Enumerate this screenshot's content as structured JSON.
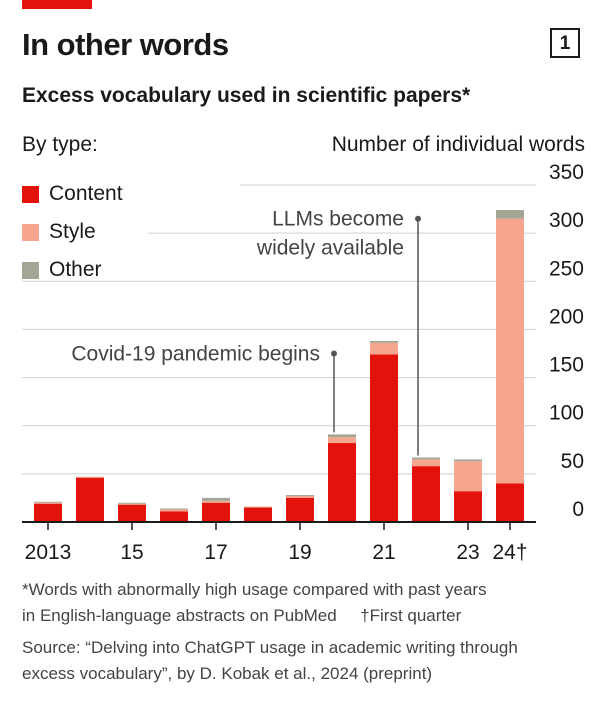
{
  "title": "In other words",
  "badge": "1",
  "subtitle": "Excess vocabulary used in scientific papers*",
  "legend_title": "By type:",
  "footnotes": {
    "line1": "*Words with abnormally high usage compared with past years",
    "line2a": "in English-language abstracts on PubMed",
    "line2b": "†First quarter",
    "line3": "Source: “Delving into ChatGPT usage in academic writing through",
    "line4": "excess vocabulary”, by D. Kobak et al., 2024 (preprint)"
  },
  "colors": {
    "content": "#e3120b",
    "style": "#f6a58e",
    "other": "#a5a595",
    "accent": "#e3120b"
  },
  "chart_data": {
    "type": "bar",
    "stacked": true,
    "ylabel": "Number of individual words",
    "ylim": [
      0,
      350
    ],
    "yticks": [
      0,
      50,
      100,
      150,
      200,
      250,
      300,
      350
    ],
    "axis_side": "right",
    "legend_position": "top-left",
    "categories": [
      "2013",
      "2014",
      "2015",
      "2016",
      "2017",
      "2018",
      "2019",
      "2020",
      "2021",
      "2022",
      "2023",
      "2024"
    ],
    "xtick_labels": [
      {
        "category": "2013",
        "label": "2013"
      },
      {
        "category": "2015",
        "label": "15"
      },
      {
        "category": "2017",
        "label": "17"
      },
      {
        "category": "2019",
        "label": "19"
      },
      {
        "category": "2021",
        "label": "21"
      },
      {
        "category": "2023",
        "label": "23"
      },
      {
        "category": "2024",
        "label": "24†"
      }
    ],
    "series": [
      {
        "name": "Content",
        "color": "#e3120b",
        "values": [
          19,
          46,
          18,
          11,
          20,
          15,
          25,
          82,
          174,
          58,
          32,
          40
        ]
      },
      {
        "name": "Style",
        "color": "#f6a58e",
        "values": [
          1,
          1,
          1,
          2,
          2,
          1,
          2,
          6,
          12,
          7,
          31,
          275
        ]
      },
      {
        "name": "Other",
        "color": "#a5a595",
        "values": [
          1,
          0,
          1,
          1,
          3,
          0,
          1,
          3,
          2,
          2,
          2,
          9
        ]
      }
    ],
    "annotations": [
      {
        "text": "Covid-19 pandemic begins",
        "category": "2020",
        "y": 175
      },
      {
        "lines": [
          "LLMs become",
          "widely available"
        ],
        "category": "2022",
        "y": 315
      }
    ]
  }
}
